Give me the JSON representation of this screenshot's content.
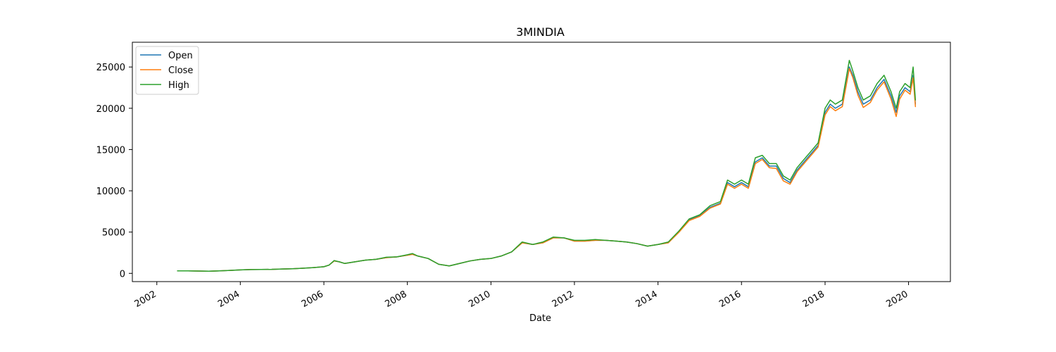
{
  "chart_data": {
    "type": "line",
    "title": "3MINDIA",
    "xlabel": "Date",
    "ylabel": "",
    "x_axis_type": "date",
    "xlim": [
      "2001-06-01",
      "2021-01-01"
    ],
    "ylim": [
      -1000,
      28000
    ],
    "x_ticks": [
      "2002-01-01",
      "2004-01-01",
      "2006-01-01",
      "2008-01-01",
      "2010-01-01",
      "2012-01-01",
      "2014-01-01",
      "2016-01-01",
      "2018-01-01",
      "2020-01-01"
    ],
    "x_tick_labels": [
      "2002",
      "2004",
      "2006",
      "2008",
      "2010",
      "2012",
      "2014",
      "2016",
      "2018",
      "2020"
    ],
    "y_ticks": [
      0,
      5000,
      10000,
      15000,
      20000,
      25000
    ],
    "y_tick_labels": [
      "0",
      "5000",
      "10000",
      "15000",
      "20000",
      "25000"
    ],
    "grid": false,
    "legend_position": "top-left",
    "colors": {
      "Open": "#1f77b4",
      "Close": "#ff7f0e",
      "High": "#2ca02c"
    },
    "x": [
      "2002-07-01",
      "2002-10-01",
      "2003-01-01",
      "2003-04-01",
      "2003-07-01",
      "2003-10-01",
      "2004-01-01",
      "2004-04-01",
      "2004-07-01",
      "2004-10-01",
      "2005-01-01",
      "2005-04-01",
      "2005-07-01",
      "2005-10-01",
      "2006-01-01",
      "2006-02-15",
      "2006-04-01",
      "2006-05-15",
      "2006-07-01",
      "2006-10-01",
      "2007-01-01",
      "2007-04-01",
      "2007-07-01",
      "2007-10-01",
      "2008-01-01",
      "2008-02-15",
      "2008-04-01",
      "2008-07-01",
      "2008-10-01",
      "2009-01-01",
      "2009-04-01",
      "2009-07-01",
      "2009-10-01",
      "2010-01-01",
      "2010-04-01",
      "2010-07-01",
      "2010-10-01",
      "2011-01-01",
      "2011-04-01",
      "2011-07-01",
      "2011-10-01",
      "2012-01-01",
      "2012-04-01",
      "2012-07-01",
      "2012-10-01",
      "2013-01-01",
      "2013-04-01",
      "2013-07-01",
      "2013-10-01",
      "2014-01-01",
      "2014-04-01",
      "2014-07-01",
      "2014-10-01",
      "2015-01-01",
      "2015-04-01",
      "2015-07-01",
      "2015-09-01",
      "2015-11-01",
      "2016-01-01",
      "2016-03-01",
      "2016-05-01",
      "2016-07-01",
      "2016-09-01",
      "2016-11-01",
      "2017-01-01",
      "2017-03-01",
      "2017-05-01",
      "2017-07-01",
      "2017-09-01",
      "2017-11-01",
      "2018-01-01",
      "2018-02-15",
      "2018-04-01",
      "2018-06-01",
      "2018-08-01",
      "2018-09-01",
      "2018-10-15",
      "2018-12-01",
      "2019-02-01",
      "2019-04-01",
      "2019-06-01",
      "2019-08-01",
      "2019-09-15",
      "2019-10-15",
      "2019-12-01",
      "2020-01-15",
      "2020-02-10",
      "2020-03-01"
    ],
    "series": [
      {
        "name": "Open",
        "values": [
          300,
          300,
          280,
          260,
          300,
          350,
          420,
          460,
          470,
          480,
          520,
          560,
          620,
          700,
          800,
          1000,
          1500,
          1400,
          1200,
          1400,
          1600,
          1700,
          1900,
          2000,
          2200,
          2300,
          2100,
          1800,
          1100,
          900,
          1200,
          1500,
          1700,
          1800,
          2100,
          2600,
          3700,
          3500,
          3700,
          4300,
          4300,
          3900,
          3900,
          4000,
          4000,
          3900,
          3800,
          3600,
          3300,
          3500,
          3700,
          5000,
          6500,
          7000,
          8000,
          8500,
          11000,
          10500,
          11000,
          10500,
          13500,
          14000,
          13000,
          13000,
          11500,
          11000,
          12500,
          13500,
          14500,
          15500,
          19500,
          20500,
          20000,
          20500,
          25000,
          24000,
          22000,
          20500,
          21000,
          22500,
          23500,
          21500,
          19500,
          21500,
          22500,
          22000,
          24000,
          20500
        ]
      },
      {
        "name": "Close",
        "values": [
          300,
          300,
          280,
          260,
          300,
          350,
          420,
          460,
          470,
          480,
          520,
          560,
          620,
          700,
          800,
          1000,
          1500,
          1400,
          1200,
          1400,
          1600,
          1700,
          1900,
          2000,
          2200,
          2300,
          2100,
          1800,
          1100,
          900,
          1200,
          1500,
          1700,
          1800,
          2100,
          2600,
          3700,
          3500,
          3700,
          4300,
          4300,
          3900,
          3900,
          4000,
          4000,
          3900,
          3800,
          3600,
          3300,
          3500,
          3700,
          4950,
          6400,
          6900,
          7900,
          8400,
          10800,
          10300,
          10800,
          10300,
          13300,
          13800,
          12800,
          12700,
          11200,
          10800,
          12300,
          13300,
          14300,
          15300,
          19200,
          20200,
          19700,
          20200,
          24800,
          23700,
          21600,
          20100,
          20700,
          22200,
          23200,
          21100,
          19000,
          21100,
          22200,
          21700,
          23700,
          20200
        ]
      },
      {
        "name": "High",
        "values": [
          300,
          300,
          280,
          260,
          300,
          350,
          420,
          460,
          470,
          480,
          520,
          560,
          620,
          700,
          800,
          1000,
          1550,
          1400,
          1200,
          1400,
          1600,
          1700,
          1950,
          2000,
          2250,
          2400,
          2100,
          1800,
          1100,
          900,
          1200,
          1500,
          1700,
          1800,
          2100,
          2600,
          3800,
          3500,
          3800,
          4400,
          4300,
          4000,
          4000,
          4100,
          4000,
          3900,
          3800,
          3600,
          3300,
          3500,
          3800,
          5100,
          6600,
          7100,
          8200,
          8700,
          11300,
          10800,
          11300,
          10800,
          14000,
          14300,
          13300,
          13300,
          11800,
          11300,
          12800,
          13800,
          14800,
          15800,
          20000,
          21000,
          20500,
          21000,
          25800,
          24500,
          22500,
          21000,
          21500,
          23000,
          24000,
          22000,
          20000,
          22000,
          23000,
          22500,
          25000,
          21000
        ]
      }
    ]
  }
}
